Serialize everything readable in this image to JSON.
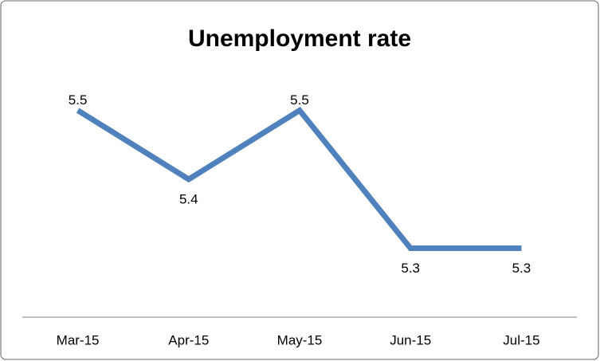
{
  "chart_data": {
    "type": "line",
    "title": "Unemployment rate",
    "categories": [
      "Mar-15",
      "Apr-15",
      "May-15",
      "Jun-15",
      "Jul-15"
    ],
    "series": [
      {
        "name": "Unemployment rate",
        "color": "#4f81bd",
        "values": [
          5.5,
          5.4,
          5.5,
          5.3,
          5.3
        ]
      }
    ],
    "ylim": [
      5.2,
      5.6
    ]
  }
}
